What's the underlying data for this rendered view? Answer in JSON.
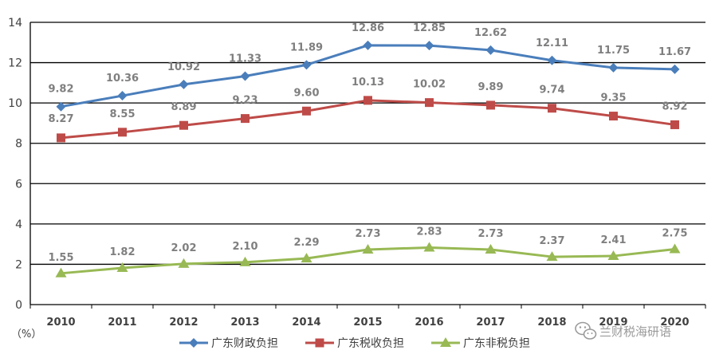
{
  "chart_data": {
    "type": "line",
    "title": "",
    "xlabel": "",
    "ylabel": "",
    "unit_label": "（%）",
    "ylim": [
      0,
      14
    ],
    "yticks": [
      0,
      2,
      4,
      6,
      8,
      10,
      12,
      14
    ],
    "grid": true,
    "legend_position": "bottom",
    "categories": [
      "2010",
      "2011",
      "2012",
      "2013",
      "2014",
      "2015",
      "2016",
      "2017",
      "2018",
      "2019",
      "2020"
    ],
    "series": [
      {
        "name": "广东财政负担",
        "color": "#4a7ebb",
        "marker": "diamond",
        "values": [
          9.82,
          10.36,
          10.92,
          11.33,
          11.89,
          12.86,
          12.85,
          12.62,
          12.11,
          11.75,
          11.67
        ],
        "labels": [
          "9.82",
          "10.36",
          "10.92",
          "11.33",
          "11.89",
          "12.86",
          "12.85",
          "12.62",
          "12.11",
          "11.75",
          "11.67"
        ]
      },
      {
        "name": "广东税收负担",
        "color": "#be4b48",
        "marker": "square",
        "values": [
          8.27,
          8.55,
          8.89,
          9.23,
          9.6,
          10.13,
          10.02,
          9.89,
          9.74,
          9.35,
          8.92
        ],
        "labels": [
          "8.27",
          "8.55",
          "8.89",
          "9.23",
          "9.60",
          "10.13",
          "10.02",
          "9.89",
          "9.74",
          "9.35",
          "8.92"
        ]
      },
      {
        "name": "广东非税负担",
        "color": "#98b954",
        "marker": "triangle",
        "values": [
          1.55,
          1.82,
          2.02,
          2.1,
          2.29,
          2.73,
          2.83,
          2.73,
          2.37,
          2.41,
          2.75
        ],
        "labels": [
          "1.55",
          "1.82",
          "2.02",
          "2.10",
          "2.29",
          "2.73",
          "2.83",
          "2.73",
          "2.37",
          "2.41",
          "2.75"
        ]
      }
    ]
  },
  "watermark": {
    "text": "兰财税海研语",
    "icon": "wechat-icon"
  }
}
